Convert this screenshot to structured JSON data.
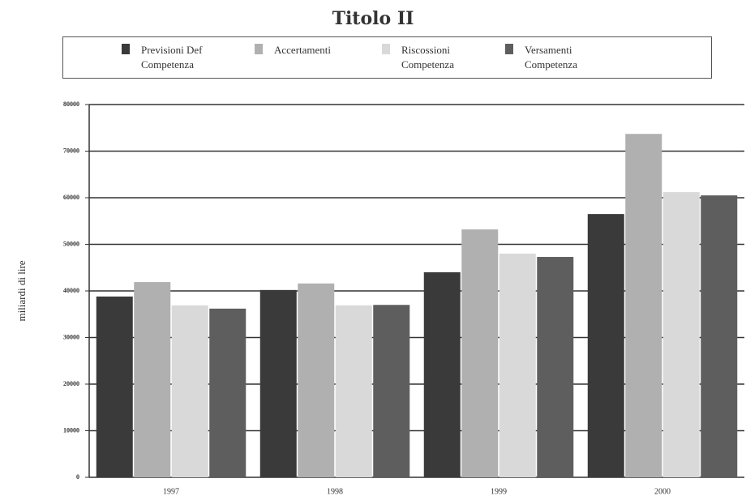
{
  "chart_data": {
    "type": "bar",
    "title": "Titolo II",
    "ylabel": "miliardi di lire",
    "categories": [
      "1997",
      "1998",
      "1999",
      "2000"
    ],
    "series": [
      {
        "name": "Previsioni Def Competenza",
        "color": "#3a3a3a",
        "values": [
          38800,
          40200,
          44000,
          56500
        ]
      },
      {
        "name": "Accertamenti",
        "color": "#b0b0b0",
        "values": [
          41900,
          41600,
          53200,
          73700
        ]
      },
      {
        "name": "Riscossioni Competenza",
        "color": "#d9d9d9",
        "values": [
          36900,
          36900,
          48000,
          61200
        ]
      },
      {
        "name": "Versamenti Competenza",
        "color": "#5e5e5e",
        "values": [
          36200,
          37000,
          47300,
          60500
        ]
      }
    ],
    "ylim": [
      0,
      80000
    ],
    "yticks": [
      0,
      10000,
      20000,
      30000,
      40000,
      50000,
      60000,
      70000,
      80000
    ],
    "grid": true
  }
}
